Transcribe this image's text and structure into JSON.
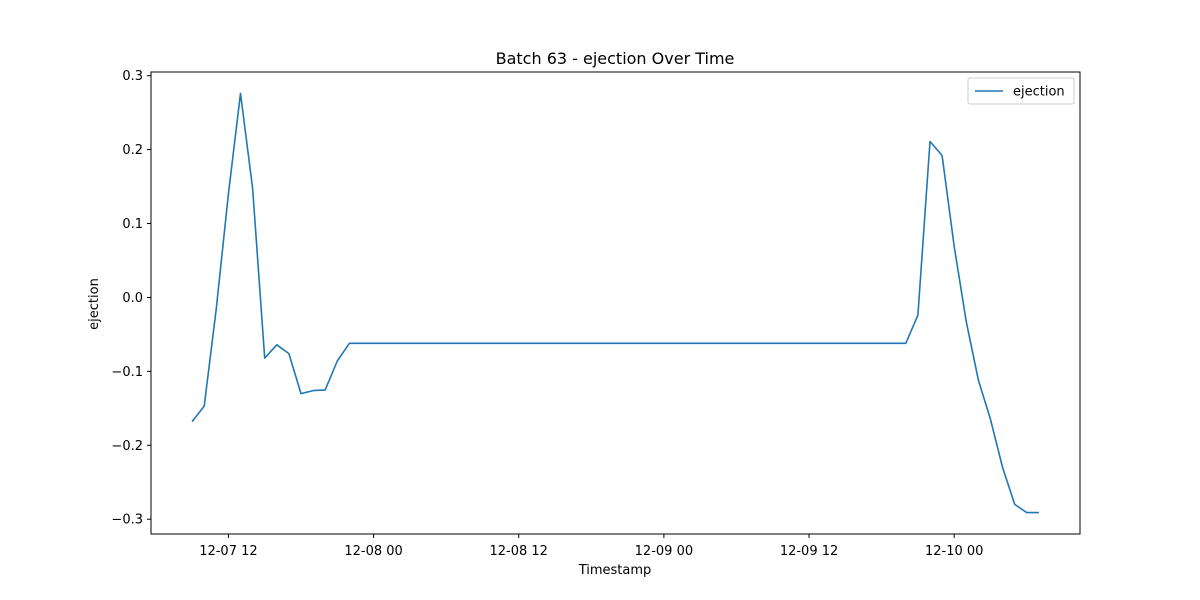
{
  "chart_data": {
    "type": "line",
    "title": "Batch 63 - ejection Over Time",
    "xlabel": "Timestamp",
    "ylabel": "ejection",
    "xlim": [
      "2024-12-07 05:36",
      "2024-12-10 10:24"
    ],
    "ylim": [
      -0.32,
      0.305
    ],
    "x_ticks": [
      "2024-12-07 12:00",
      "2024-12-08 00:00",
      "2024-12-08 12:00",
      "2024-12-09 00:00",
      "2024-12-09 12:00",
      "2024-12-10 00:00"
    ],
    "x_tick_labels": [
      "12-07 12",
      "12-08 00",
      "12-08 12",
      "12-09 00",
      "12-09 12",
      "12-10 00"
    ],
    "y_ticks": [
      -0.3,
      -0.2,
      -0.1,
      0.0,
      0.1,
      0.2,
      0.3
    ],
    "y_tick_labels": [
      "−0.3",
      "−0.2",
      "−0.1",
      "0.0",
      "0.1",
      "0.2",
      "0.3"
    ],
    "grid": false,
    "legend": {
      "position": "top-right",
      "entries": [
        "ejection"
      ]
    },
    "series": [
      {
        "name": "ejection",
        "color": "#1f77b4",
        "x": [
          "2024-12-07 09:00",
          "2024-12-07 10:00",
          "2024-12-07 11:00",
          "2024-12-07 12:00",
          "2024-12-07 13:00",
          "2024-12-07 14:00",
          "2024-12-07 15:00",
          "2024-12-07 16:00",
          "2024-12-07 17:00",
          "2024-12-07 18:00",
          "2024-12-07 19:00",
          "2024-12-07 20:00",
          "2024-12-07 21:00",
          "2024-12-07 22:00",
          "2024-12-09 19:00",
          "2024-12-09 20:00",
          "2024-12-09 21:00",
          "2024-12-09 22:00",
          "2024-12-09 23:00",
          "2024-12-10 00:00",
          "2024-12-10 01:00",
          "2024-12-10 02:00",
          "2024-12-10 03:00",
          "2024-12-10 04:00",
          "2024-12-10 05:00",
          "2024-12-10 06:00",
          "2024-12-10 07:00"
        ],
        "values": [
          -0.168,
          -0.147,
          -0.015,
          0.14,
          0.276,
          0.148,
          -0.082,
          -0.064,
          -0.076,
          -0.13,
          -0.126,
          -0.125,
          -0.086,
          -0.062,
          -0.062,
          -0.062,
          -0.024,
          0.211,
          0.192,
          0.069,
          -0.033,
          -0.112,
          -0.165,
          -0.23,
          -0.28,
          -0.291,
          -0.291
        ]
      }
    ]
  }
}
